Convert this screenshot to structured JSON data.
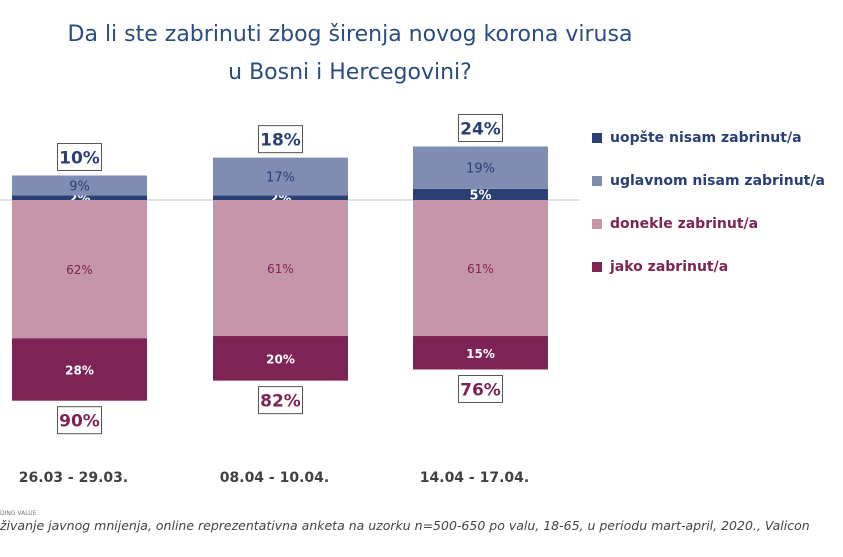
{
  "chart_data": {
    "type": "stacked-bar",
    "title_line1": "Da li ste zabrinuti zbog širenja novog korona virusa",
    "title_line2": "u Bosni i Hercegovini?",
    "categories": [
      "26.03 - 29.03.",
      "08.04 - 10.04.",
      "14.04 - 17.04."
    ],
    "series": [
      {
        "name": "uopšte nisam zabrinut/a",
        "values": [
          2,
          2,
          5
        ],
        "color": "#2a3f74",
        "direction": "up"
      },
      {
        "name": "uglavnom nisam zabrinut/a",
        "values": [
          9,
          17,
          19
        ],
        "color": "#7f8db3",
        "direction": "up"
      },
      {
        "name": "donekle zabrinut/a",
        "values": [
          62,
          61,
          61
        ],
        "color": "#c595aa",
        "direction": "down"
      },
      {
        "name": "jako zabrinut/a",
        "values": [
          28,
          20,
          15
        ],
        "color": "#7e2355",
        "direction": "down"
      }
    ],
    "totals_not_worried": [
      "10%",
      "18%",
      "24%"
    ],
    "totals_worried": [
      "90%",
      "82%",
      "76%"
    ],
    "legend_position": "right"
  },
  "footer": {
    "brand": "DING VALUE",
    "source": "živanje javnog mnijenja, online reprezentativna anketa na uzorku n=500-650 po valu, 18-65, u periodu mart-april, 2020., Valicon"
  }
}
